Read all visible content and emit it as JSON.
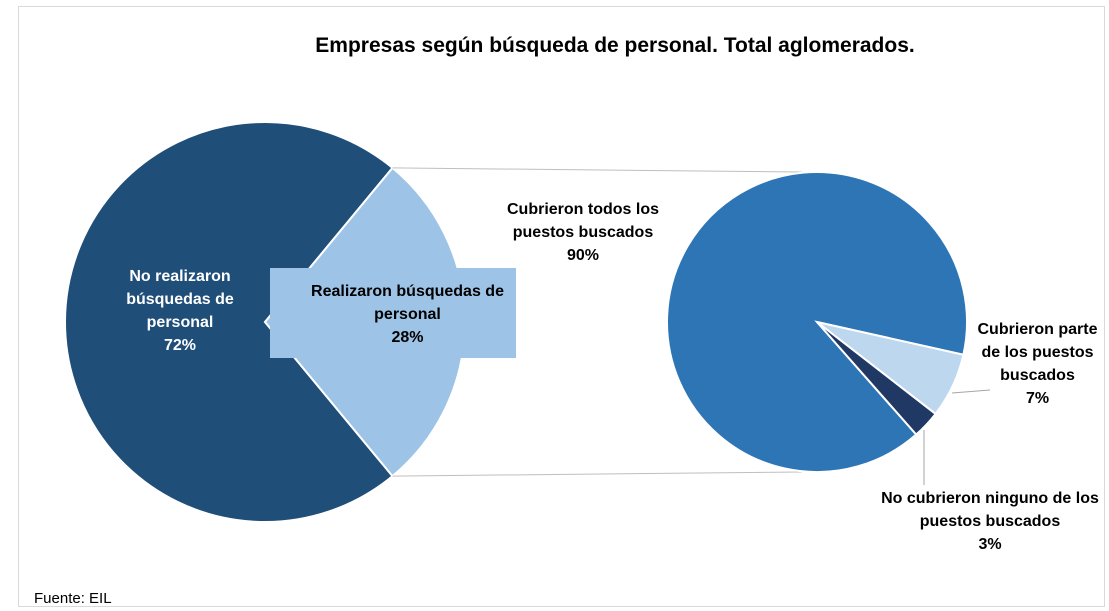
{
  "chart_data": {
    "type": "pie_of_pie",
    "title": "Empresas según búsqueda de personal. Total aglomerados.",
    "source": "Fuente: EIL",
    "main": {
      "categories": [
        "No realizaron búsquedas de personal",
        "Realizaron búsquedas de personal"
      ],
      "values": [
        72,
        28
      ],
      "value_labels": [
        "72%",
        "28%"
      ],
      "colors": [
        "#1f4e79",
        "#9dc3e6"
      ]
    },
    "secondary": {
      "categories": [
        "Cubrieron todos los puestos buscados",
        "Cubrieron parte de los puestos buscados",
        "No cubrieron ninguno de los puestos buscados"
      ],
      "values": [
        90,
        7,
        3
      ],
      "value_labels": [
        "90%",
        "7%",
        "3%"
      ],
      "colors": [
        "#2e75b6",
        "#bdd7ee",
        "#203864"
      ]
    }
  }
}
